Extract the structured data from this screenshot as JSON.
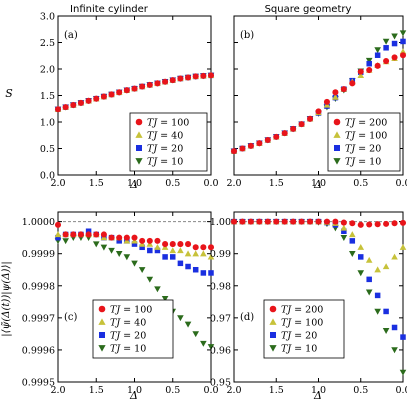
{
  "colors": {
    "red": "#e8141a",
    "yellow": "#c7c23a",
    "blue": "#1a2fe0",
    "green": "#2b6b1c"
  },
  "chart_data": [
    {
      "type": "scatter",
      "panel": "(a)",
      "title": "Infinite cylinder",
      "xlabel": "Δ",
      "ylabel": "S",
      "xlim": [
        2.0,
        0.0
      ],
      "ylim": [
        0.0,
        3.0
      ],
      "xticks": [
        "2.0",
        "1.5",
        "1.0",
        "0.5",
        "0.0"
      ],
      "yticks": [
        "0.0",
        "0.5",
        "1.0",
        "1.5",
        "2.0",
        "2.5",
        "3.0"
      ],
      "legend_position": "bottom-right",
      "series": [
        {
          "name": "TJ = 100",
          "marker": "circle",
          "color": "red",
          "x": [
            2.0,
            1.9,
            1.8,
            1.7,
            1.6,
            1.5,
            1.4,
            1.3,
            1.2,
            1.1,
            1.0,
            0.9,
            0.8,
            0.7,
            0.6,
            0.5,
            0.4,
            0.3,
            0.2,
            0.1,
            0.0
          ],
          "y": [
            1.24,
            1.28,
            1.32,
            1.36,
            1.4,
            1.44,
            1.48,
            1.52,
            1.56,
            1.6,
            1.63,
            1.67,
            1.7,
            1.73,
            1.76,
            1.79,
            1.82,
            1.84,
            1.86,
            1.87,
            1.88
          ]
        },
        {
          "name": "TJ = 40",
          "marker": "triangle-up",
          "color": "yellow",
          "x": [
            2.0,
            1.9,
            1.8,
            1.7,
            1.6,
            1.5,
            1.4,
            1.3,
            1.2,
            1.1,
            1.0,
            0.9,
            0.8,
            0.7,
            0.6,
            0.5,
            0.4,
            0.3,
            0.2,
            0.1,
            0.0
          ],
          "y": [
            1.24,
            1.28,
            1.32,
            1.36,
            1.4,
            1.44,
            1.48,
            1.52,
            1.56,
            1.6,
            1.63,
            1.67,
            1.7,
            1.73,
            1.76,
            1.79,
            1.82,
            1.84,
            1.86,
            1.87,
            1.88
          ]
        },
        {
          "name": "TJ = 20",
          "marker": "square",
          "color": "blue",
          "x": [
            2.0,
            1.9,
            1.8,
            1.7,
            1.6,
            1.5,
            1.4,
            1.3,
            1.2,
            1.1,
            1.0,
            0.9,
            0.8,
            0.7,
            0.6,
            0.5,
            0.4,
            0.3,
            0.2,
            0.1,
            0.0
          ],
          "y": [
            1.24,
            1.28,
            1.32,
            1.36,
            1.4,
            1.44,
            1.48,
            1.52,
            1.56,
            1.6,
            1.63,
            1.67,
            1.7,
            1.73,
            1.76,
            1.79,
            1.82,
            1.84,
            1.86,
            1.87,
            1.88
          ]
        },
        {
          "name": "TJ = 10",
          "marker": "triangle-down",
          "color": "green",
          "x": [
            2.0,
            1.9,
            1.8,
            1.7,
            1.6,
            1.5,
            1.4,
            1.3,
            1.2,
            1.1,
            1.0,
            0.9,
            0.8,
            0.7,
            0.6,
            0.5,
            0.4,
            0.3,
            0.2,
            0.1,
            0.0
          ],
          "y": [
            1.24,
            1.28,
            1.32,
            1.36,
            1.4,
            1.44,
            1.48,
            1.52,
            1.56,
            1.6,
            1.63,
            1.67,
            1.7,
            1.73,
            1.76,
            1.79,
            1.82,
            1.84,
            1.86,
            1.87,
            1.88
          ]
        }
      ]
    },
    {
      "type": "scatter",
      "panel": "(b)",
      "title": "Square geometry",
      "xlabel": "Δ",
      "ylabel": "",
      "xlim": [
        2.0,
        0.0
      ],
      "ylim": [
        0.0,
        3.0
      ],
      "xticks": [
        "2.0",
        "1.5",
        "1.0",
        "0.5",
        "0.0"
      ],
      "yticks": [
        "",
        "",
        "",
        "",
        "",
        "",
        ""
      ],
      "legend_position": "bottom-right",
      "series": [
        {
          "name": "TJ = 200",
          "marker": "circle",
          "color": "red",
          "x": [
            2.0,
            1.9,
            1.8,
            1.7,
            1.6,
            1.5,
            1.4,
            1.3,
            1.2,
            1.1,
            1.0,
            0.9,
            0.8,
            0.7,
            0.6,
            0.5,
            0.4,
            0.3,
            0.2,
            0.1,
            0.0
          ],
          "y": [
            0.45,
            0.5,
            0.55,
            0.6,
            0.66,
            0.72,
            0.79,
            0.87,
            0.96,
            1.06,
            1.2,
            1.38,
            1.56,
            1.62,
            1.73,
            1.95,
            1.98,
            2.06,
            2.15,
            2.22,
            2.26
          ]
        },
        {
          "name": "TJ = 100",
          "marker": "triangle-up",
          "color": "yellow",
          "x": [
            2.0,
            1.9,
            1.8,
            1.7,
            1.6,
            1.5,
            1.4,
            1.3,
            1.2,
            1.1,
            1.0,
            0.9,
            0.8,
            0.7,
            0.6,
            0.5,
            0.4,
            0.3,
            0.2,
            0.1,
            0.0
          ],
          "y": [
            0.45,
            0.5,
            0.55,
            0.6,
            0.66,
            0.72,
            0.79,
            0.87,
            0.96,
            1.06,
            1.18,
            1.32,
            1.47,
            1.62,
            1.76,
            1.88,
            1.98,
            2.07,
            2.14,
            2.2,
            2.33
          ]
        },
        {
          "name": "TJ = 20",
          "marker": "square",
          "color": "blue",
          "x": [
            2.0,
            1.9,
            1.8,
            1.7,
            1.6,
            1.5,
            1.4,
            1.3,
            1.2,
            1.1,
            1.0,
            0.9,
            0.8,
            0.7,
            0.6,
            0.5,
            0.4,
            0.3,
            0.2,
            0.1,
            0.0
          ],
          "y": [
            0.45,
            0.5,
            0.55,
            0.6,
            0.66,
            0.72,
            0.79,
            0.87,
            0.96,
            1.06,
            1.17,
            1.3,
            1.46,
            1.62,
            1.78,
            1.94,
            2.1,
            2.26,
            2.4,
            2.48,
            2.52
          ]
        },
        {
          "name": "TJ = 10",
          "marker": "triangle-down",
          "color": "green",
          "x": [
            2.0,
            1.9,
            1.8,
            1.7,
            1.6,
            1.5,
            1.4,
            1.3,
            1.2,
            1.1,
            1.0,
            0.9,
            0.8,
            0.7,
            0.6,
            0.5,
            0.4,
            0.3,
            0.2,
            0.1,
            0.0
          ],
          "y": [
            0.45,
            0.5,
            0.55,
            0.6,
            0.66,
            0.72,
            0.79,
            0.87,
            0.96,
            1.06,
            1.16,
            1.28,
            1.44,
            1.6,
            1.78,
            1.96,
            2.16,
            2.36,
            2.52,
            2.62,
            2.68
          ]
        }
      ]
    },
    {
      "type": "scatter",
      "panel": "(c)",
      "title": "",
      "xlabel": "Δ",
      "ylabel": "|⟨ψ̃(Δ(t))|ψ(Δ)⟩|",
      "xlim": [
        2.0,
        0.0
      ],
      "ylim": [
        0.9995,
        1.00003
      ],
      "xticks": [
        "2.0",
        "1.5",
        "1.0",
        "0.5",
        "0.0"
      ],
      "yticks": [
        "0.9995",
        "0.9996",
        "0.9997",
        "0.9998",
        "0.9999",
        "1.0000"
      ],
      "ytick_values": [
        0.9995,
        0.9996,
        0.9997,
        0.9998,
        0.9999,
        1.0
      ],
      "reference_line": 1.0,
      "legend_position": "bottom-left",
      "series": [
        {
          "name": "TJ = 100",
          "marker": "circle",
          "color": "red",
          "x": [
            2.0,
            1.9,
            1.8,
            1.7,
            1.6,
            1.5,
            1.4,
            1.3,
            1.2,
            1.1,
            1.0,
            0.9,
            0.8,
            0.7,
            0.6,
            0.5,
            0.4,
            0.3,
            0.2,
            0.1,
            0.0
          ],
          "y": [
            0.99999,
            0.99996,
            0.99996,
            0.99996,
            0.99996,
            0.99996,
            0.99996,
            0.99995,
            0.99995,
            0.99995,
            0.99995,
            0.99994,
            0.99994,
            0.99994,
            0.99993,
            0.99993,
            0.99993,
            0.99993,
            0.99992,
            0.99992,
            0.99992
          ]
        },
        {
          "name": "TJ = 40",
          "marker": "triangle-up",
          "color": "yellow",
          "x": [
            2.0,
            1.9,
            1.8,
            1.7,
            1.6,
            1.5,
            1.4,
            1.3,
            1.2,
            1.1,
            1.0,
            0.9,
            0.8,
            0.7,
            0.6,
            0.5,
            0.4,
            0.3,
            0.2,
            0.1,
            0.0
          ],
          "y": [
            0.99996,
            0.99996,
            0.99996,
            0.99996,
            0.99996,
            0.99996,
            0.99995,
            0.99995,
            0.99995,
            0.99994,
            0.99994,
            0.99993,
            0.99993,
            0.99992,
            0.99992,
            0.99991,
            0.99991,
            0.9999,
            0.9999,
            0.9999,
            0.99989
          ]
        },
        {
          "name": "TJ = 20",
          "marker": "square",
          "color": "blue",
          "x": [
            2.0,
            1.9,
            1.8,
            1.7,
            1.6,
            1.5,
            1.4,
            1.3,
            1.2,
            1.1,
            1.0,
            0.9,
            0.8,
            0.7,
            0.6,
            0.5,
            0.4,
            0.3,
            0.2,
            0.1,
            0.0
          ],
          "y": [
            0.99995,
            0.99996,
            0.99996,
            0.99996,
            0.99997,
            0.99996,
            0.99995,
            0.99995,
            0.99994,
            0.99994,
            0.99993,
            0.99992,
            0.99991,
            0.99991,
            0.99989,
            0.99989,
            0.99987,
            0.99986,
            0.99985,
            0.99984,
            0.99984
          ]
        },
        {
          "name": "TJ = 10",
          "marker": "triangle-down",
          "color": "green",
          "x": [
            2.0,
            1.9,
            1.8,
            1.7,
            1.6,
            1.5,
            1.4,
            1.3,
            1.2,
            1.1,
            1.0,
            0.9,
            0.8,
            0.7,
            0.6,
            0.5,
            0.4,
            0.3,
            0.2,
            0.1,
            0.0
          ],
          "y": [
            0.99994,
            0.99994,
            0.99995,
            0.99995,
            0.99995,
            0.99993,
            0.99992,
            0.99991,
            0.9999,
            0.99989,
            0.99987,
            0.99985,
            0.99982,
            0.99979,
            0.99976,
            0.99972,
            0.9997,
            0.99968,
            0.99965,
            0.99962,
            0.99961
          ]
        }
      ]
    },
    {
      "type": "scatter",
      "panel": "(d)",
      "title": "",
      "xlabel": "Δ",
      "ylabel": "",
      "xlim": [
        2.0,
        0.0
      ],
      "ylim": [
        0.95,
        1.003
      ],
      "xticks": [
        "2.0",
        "1.5",
        "1.0",
        "0.5",
        "0.0"
      ],
      "yticks": [
        "0.95",
        "0.96",
        "0.97",
        "0.98",
        "0.99",
        "1.00"
      ],
      "ytick_values": [
        0.95,
        0.96,
        0.97,
        0.98,
        0.99,
        1.0
      ],
      "reference_line": 1.0,
      "legend_position": "bottom-left",
      "series": [
        {
          "name": "TJ = 200",
          "marker": "circle",
          "color": "red",
          "x": [
            2.0,
            1.9,
            1.8,
            1.7,
            1.6,
            1.5,
            1.4,
            1.3,
            1.2,
            1.1,
            1.0,
            0.9,
            0.8,
            0.7,
            0.6,
            0.5,
            0.4,
            0.3,
            0.2,
            0.1,
            0.0
          ],
          "y": [
            1.0,
            1.0,
            1.0,
            1.0,
            1.0,
            1.0,
            1.0,
            1.0,
            1.0,
            1.0,
            1.0,
            1.0,
            1.0,
            0.9997,
            0.9995,
            0.999,
            0.9991,
            0.9992,
            0.9993,
            0.9995,
            0.9996
          ]
        },
        {
          "name": "TJ = 100",
          "marker": "triangle-up",
          "color": "yellow",
          "x": [
            2.0,
            1.9,
            1.8,
            1.7,
            1.6,
            1.5,
            1.4,
            1.3,
            1.2,
            1.1,
            1.0,
            0.9,
            0.8,
            0.7,
            0.6,
            0.5,
            0.4,
            0.3,
            0.2,
            0.1,
            0.0
          ],
          "y": [
            1.0,
            1.0,
            1.0,
            1.0,
            1.0,
            1.0,
            1.0,
            1.0,
            1.0,
            1.0,
            1.0,
            0.9998,
            0.9995,
            0.998,
            0.996,
            0.992,
            0.988,
            0.985,
            0.986,
            0.989,
            0.992
          ]
        },
        {
          "name": "TJ = 20",
          "marker": "square",
          "color": "blue",
          "x": [
            2.0,
            1.9,
            1.8,
            1.7,
            1.6,
            1.5,
            1.4,
            1.3,
            1.2,
            1.1,
            1.0,
            0.9,
            0.8,
            0.7,
            0.6,
            0.5,
            0.4,
            0.3,
            0.2,
            0.1,
            0.0
          ],
          "y": [
            1.0,
            1.0,
            1.0,
            1.0,
            1.0,
            1.0,
            1.0,
            1.0,
            1.0,
            1.0,
            1.0,
            0.9997,
            0.999,
            0.997,
            0.994,
            0.989,
            0.982,
            0.977,
            0.972,
            0.967,
            0.964
          ]
        },
        {
          "name": "TJ = 10",
          "marker": "triangle-down",
          "color": "green",
          "x": [
            2.0,
            1.9,
            1.8,
            1.7,
            1.6,
            1.5,
            1.4,
            1.3,
            1.2,
            1.1,
            1.0,
            0.9,
            0.8,
            0.7,
            0.6,
            0.5,
            0.4,
            0.3,
            0.2,
            0.1,
            0.0
          ],
          "y": [
            1.0,
            1.0,
            1.0,
            1.0,
            1.0,
            1.0,
            1.0,
            1.0,
            1.0,
            1.0,
            0.9998,
            0.9993,
            0.998,
            0.995,
            0.99,
            0.984,
            0.978,
            0.972,
            0.966,
            0.96,
            0.953
          ]
        }
      ]
    }
  ]
}
